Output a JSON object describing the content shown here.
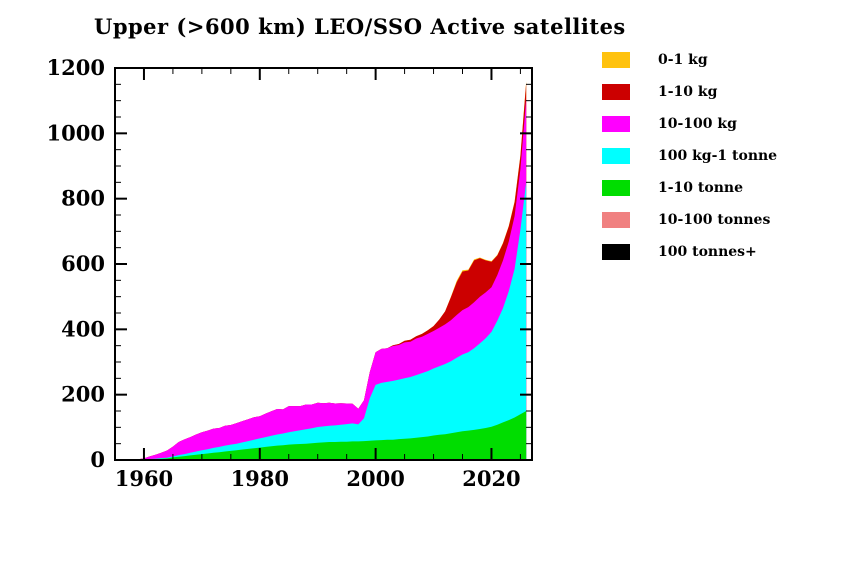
{
  "chart_data": {
    "type": "area",
    "stacked": true,
    "title": "Upper (>600 km) LEO/SSO Active satellites",
    "xlabel": "",
    "ylabel": "",
    "xlim": [
      1955,
      2027
    ],
    "ylim": [
      0,
      1200
    ],
    "x_ticks": [
      1960,
      1980,
      2000,
      2020
    ],
    "y_ticks": [
      0,
      200,
      400,
      600,
      800,
      1000,
      1200
    ],
    "x_minor_step": 5,
    "y_minor_step": 50,
    "grid": false,
    "legend_position": "right",
    "background": "#ffffff",
    "axis_color": "#000000",
    "x": [
      1957,
      1958,
      1959,
      1960,
      1961,
      1962,
      1963,
      1964,
      1965,
      1966,
      1967,
      1968,
      1969,
      1970,
      1971,
      1972,
      1973,
      1974,
      1975,
      1976,
      1977,
      1978,
      1979,
      1980,
      1981,
      1982,
      1983,
      1984,
      1985,
      1986,
      1987,
      1988,
      1989,
      1990,
      1991,
      1992,
      1993,
      1994,
      1995,
      1996,
      1997,
      1998,
      1999,
      2000,
      2001,
      2002,
      2003,
      2004,
      2005,
      2006,
      2007,
      2008,
      2009,
      2010,
      2011,
      2012,
      2013,
      2014,
      2015,
      2016,
      2017,
      2018,
      2019,
      2020,
      2021,
      2022,
      2023,
      2024,
      2025,
      2026
    ],
    "series": [
      {
        "name": "100-tonnes-plus",
        "label": "100 tonnes+",
        "color": "#000000",
        "values": [
          0,
          0,
          0,
          0,
          0,
          0,
          0,
          0,
          0,
          0,
          0,
          0,
          0,
          0,
          0,
          0,
          0,
          0,
          0,
          0,
          0,
          0,
          0,
          0,
          0,
          0,
          0,
          0,
          0,
          0,
          0,
          0,
          0,
          0,
          0,
          0,
          0,
          0,
          0,
          0,
          0,
          0,
          0,
          0,
          0,
          0,
          0,
          0,
          0,
          0,
          0,
          0,
          0,
          0,
          0,
          0,
          0,
          0,
          0,
          0,
          0,
          0,
          0,
          0,
          0,
          0,
          0,
          0,
          0,
          0
        ]
      },
      {
        "name": "10-100-tonnes",
        "label": "10-100 tonnes",
        "color": "#f08080",
        "values": [
          0,
          0,
          0,
          0,
          0,
          0,
          0,
          0,
          0,
          0,
          0,
          0,
          0,
          0,
          0,
          0,
          0,
          0,
          0,
          0,
          0,
          0,
          0,
          0,
          0,
          0,
          0,
          0,
          0,
          0,
          0,
          0,
          0,
          0,
          0,
          0,
          0,
          0,
          0,
          0,
          0,
          0,
          0,
          0,
          0,
          0,
          0,
          0,
          0,
          0,
          0,
          0,
          0,
          0,
          0,
          0,
          0,
          0,
          0,
          0,
          0,
          0,
          0,
          0,
          0,
          0,
          0,
          0,
          0,
          0
        ]
      },
      {
        "name": "1-10-tonne",
        "label": "1-10 tonne",
        "color": "#00dd00",
        "values": [
          0,
          0,
          0,
          1,
          2,
          3,
          4,
          5,
          8,
          10,
          12,
          14,
          16,
          18,
          20,
          22,
          24,
          26,
          28,
          30,
          32,
          34,
          36,
          38,
          40,
          42,
          44,
          45,
          47,
          48,
          49,
          50,
          51,
          53,
          54,
          55,
          55,
          56,
          56,
          57,
          57,
          58,
          59,
          60,
          61,
          62,
          62,
          64,
          65,
          66,
          68,
          70,
          72,
          75,
          77,
          79,
          82,
          85,
          88,
          90,
          92,
          95,
          98,
          102,
          108,
          115,
          122,
          130,
          140,
          150
        ]
      },
      {
        "name": "100-kg-1-tonne",
        "label": "100 kg-1 tonne",
        "color": "#00ffff",
        "values": [
          0,
          0,
          0,
          0,
          1,
          1,
          2,
          2,
          3,
          5,
          6,
          8,
          10,
          12,
          13,
          15,
          16,
          18,
          19,
          20,
          22,
          24,
          26,
          28,
          30,
          32,
          34,
          36,
          38,
          40,
          42,
          44,
          46,
          48,
          49,
          50,
          51,
          52,
          54,
          55,
          52,
          70,
          130,
          170,
          175,
          177,
          180,
          182,
          185,
          188,
          192,
          196,
          200,
          205,
          210,
          215,
          220,
          228,
          235,
          240,
          250,
          262,
          275,
          290,
          318,
          350,
          395,
          455,
          565,
          700
        ]
      },
      {
        "name": "10-100-kg",
        "label": "10-100 kg",
        "color": "#ff00ff",
        "values": [
          0,
          1,
          2,
          4,
          8,
          12,
          16,
          22,
          30,
          40,
          45,
          48,
          52,
          55,
          57,
          59,
          58,
          61,
          60,
          63,
          65,
          67,
          69,
          68,
          72,
          75,
          78,
          74,
          80,
          77,
          74,
          76,
          73,
          74,
          71,
          70,
          67,
          66,
          63,
          60,
          48,
          55,
          80,
          100,
          104,
          103,
          107,
          106,
          110,
          108,
          112,
          111,
          114,
          115,
          118,
          121,
          126,
          131,
          136,
          138,
          141,
          143,
          140,
          137,
          140,
          146,
          152,
          162,
          185,
          255
        ]
      },
      {
        "name": "1-10-kg",
        "label": "1-10 kg",
        "color": "#cc0000",
        "values": [
          0,
          0,
          0,
          0,
          0,
          0,
          0,
          0,
          0,
          0,
          0,
          0,
          0,
          0,
          0,
          0,
          0,
          0,
          0,
          0,
          0,
          0,
          0,
          0,
          0,
          0,
          0,
          0,
          0,
          0,
          0,
          0,
          0,
          0,
          0,
          0,
          0,
          0,
          0,
          0,
          0,
          0,
          0,
          0,
          0,
          0,
          2,
          3,
          5,
          6,
          7,
          9,
          11,
          15,
          25,
          40,
          70,
          100,
          118,
          112,
          128,
          118,
          98,
          78,
          60,
          52,
          46,
          42,
          40,
          50
        ]
      },
      {
        "name": "0-1-kg",
        "label": "0-1 kg",
        "color": "#ffc20e",
        "values": [
          0,
          0,
          0,
          0,
          0,
          0,
          0,
          0,
          0,
          0,
          0,
          0,
          0,
          0,
          0,
          0,
          0,
          0,
          0,
          0,
          0,
          0,
          0,
          0,
          0,
          0,
          0,
          0,
          0,
          0,
          0,
          0,
          0,
          0,
          0,
          0,
          0,
          0,
          0,
          0,
          0,
          0,
          0,
          0,
          0,
          0,
          0,
          0,
          0,
          0,
          0,
          0,
          0,
          0,
          0,
          0,
          2,
          5,
          4,
          3,
          3,
          2,
          2,
          2,
          2,
          2,
          2,
          3,
          3,
          5
        ]
      }
    ]
  }
}
